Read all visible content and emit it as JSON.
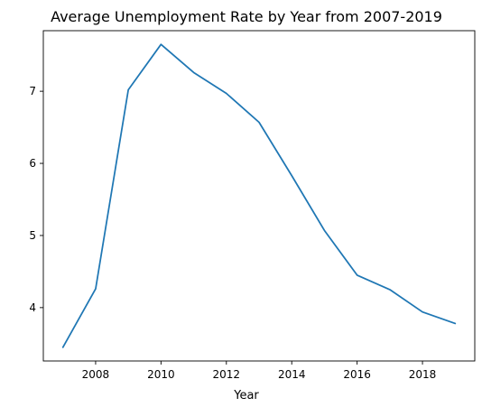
{
  "chart_data": {
    "type": "line",
    "title": "Average Unemployment Rate by Year from 2007-2019",
    "xlabel": "Year",
    "ylabel": "",
    "x": [
      2007,
      2008,
      2009,
      2010,
      2011,
      2012,
      2013,
      2014,
      2015,
      2016,
      2017,
      2018,
      2019
    ],
    "series": [
      {
        "values": [
          3.45,
          4.26,
          7.02,
          7.65,
          7.26,
          6.97,
          6.57,
          5.83,
          5.07,
          4.45,
          4.25,
          3.94,
          3.78
        ]
      }
    ],
    "xlim": [
      2006.4,
      2019.6
    ],
    "ylim": [
      3.26,
      7.84
    ],
    "xticks": [
      2008,
      2010,
      2012,
      2014,
      2016,
      2018
    ],
    "xtick_labels": [
      "2008",
      "2010",
      "2012",
      "2014",
      "2016",
      "2018"
    ],
    "yticks": [
      4,
      5,
      6,
      7
    ],
    "ytick_labels": [
      "4",
      "5",
      "6",
      "7"
    ],
    "grid": false,
    "line_color": "#1f77b4"
  }
}
